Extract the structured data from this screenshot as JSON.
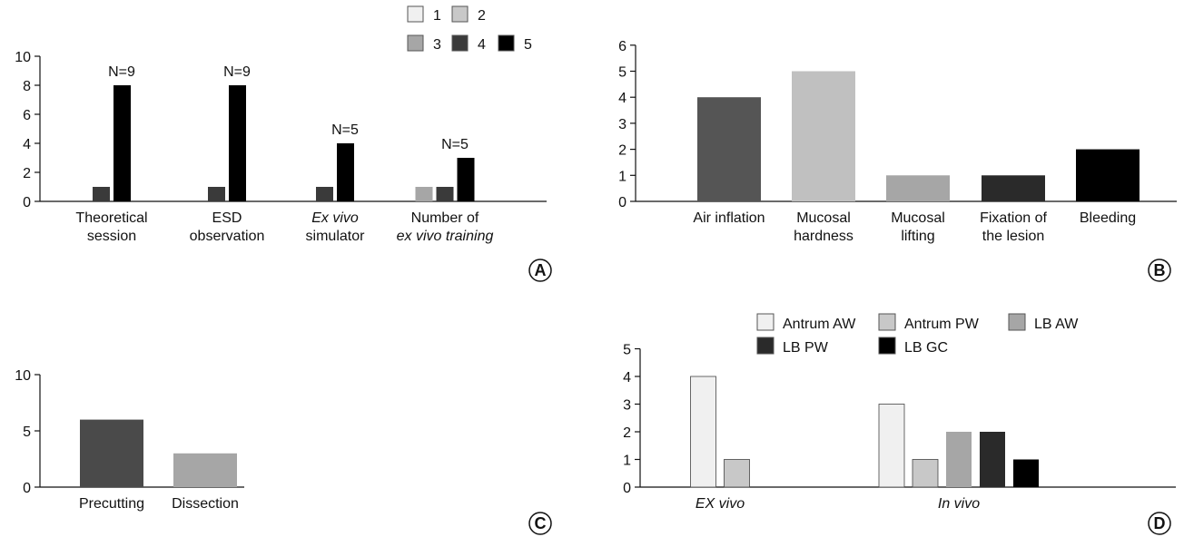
{
  "chart_data": [
    {
      "type": "bar",
      "panel": "A",
      "categories": [
        [
          "Theoretical",
          "session"
        ],
        [
          "ESD",
          "observation"
        ],
        [
          "Ex vivo",
          "simulator"
        ],
        [
          "Number of",
          "ex vivo training"
        ]
      ],
      "series": [
        {
          "name": "1",
          "color": "#f0f0f0",
          "values": [
            0,
            0,
            0,
            0
          ]
        },
        {
          "name": "2",
          "color": "#c8c8c8",
          "values": [
            0,
            0,
            0,
            0
          ]
        },
        {
          "name": "3",
          "color": "#a6a6a6",
          "values": [
            0,
            0,
            0,
            1
          ]
        },
        {
          "name": "4",
          "color": "#3a3a3a",
          "values": [
            1,
            1,
            1,
            1
          ]
        },
        {
          "name": "5",
          "color": "#000000",
          "values": [
            8,
            8,
            4,
            3
          ]
        }
      ],
      "annotations": [
        "N=9",
        "N=9",
        "N=5",
        "N=5"
      ],
      "yticks": [
        "0",
        "2",
        "4",
        "6",
        "8",
        "10"
      ],
      "ylim": [
        0,
        10
      ],
      "legend": "top-right"
    },
    {
      "type": "bar",
      "panel": "B",
      "categories": [
        [
          "Air inflation"
        ],
        [
          "Mucosal",
          "hardness"
        ],
        [
          "Mucosal",
          "lifting"
        ],
        [
          "Fixation of",
          "the lesion"
        ],
        [
          "Bleeding"
        ]
      ],
      "values": [
        4,
        5,
        1,
        1,
        2
      ],
      "colors": [
        "#555555",
        "#c0c0c0",
        "#a6a6a6",
        "#2a2a2a",
        "#000000"
      ],
      "yticks": [
        "0",
        "1",
        "2",
        "3",
        "4",
        "5",
        "6"
      ],
      "ylim": [
        0,
        6
      ]
    },
    {
      "type": "bar",
      "panel": "C",
      "categories": [
        [
          "Precutting"
        ],
        [
          "Dissection"
        ]
      ],
      "values": [
        6,
        3
      ],
      "colors": [
        "#4a4a4a",
        "#a6a6a6"
      ],
      "yticks": [
        "0",
        "5",
        "10"
      ],
      "ylim": [
        0,
        10
      ]
    },
    {
      "type": "bar",
      "panel": "D",
      "categories": [
        [
          "EX vivo"
        ],
        [
          "In vivo"
        ]
      ],
      "series": [
        {
          "name": "Antrum AW",
          "color": "#f0f0f0",
          "values": [
            4,
            3
          ]
        },
        {
          "name": "Antrum PW",
          "color": "#c8c8c8",
          "values": [
            1,
            1
          ]
        },
        {
          "name": "LB AW",
          "color": "#a6a6a6",
          "values": [
            0,
            2
          ]
        },
        {
          "name": "LB PW",
          "color": "#2a2a2a",
          "values": [
            0,
            2
          ]
        },
        {
          "name": "LB GC",
          "color": "#000000",
          "values": [
            0,
            1
          ]
        }
      ],
      "yticks": [
        "0",
        "1",
        "2",
        "3",
        "4",
        "5"
      ],
      "ylim": [
        0,
        5
      ],
      "legend": "top"
    }
  ]
}
